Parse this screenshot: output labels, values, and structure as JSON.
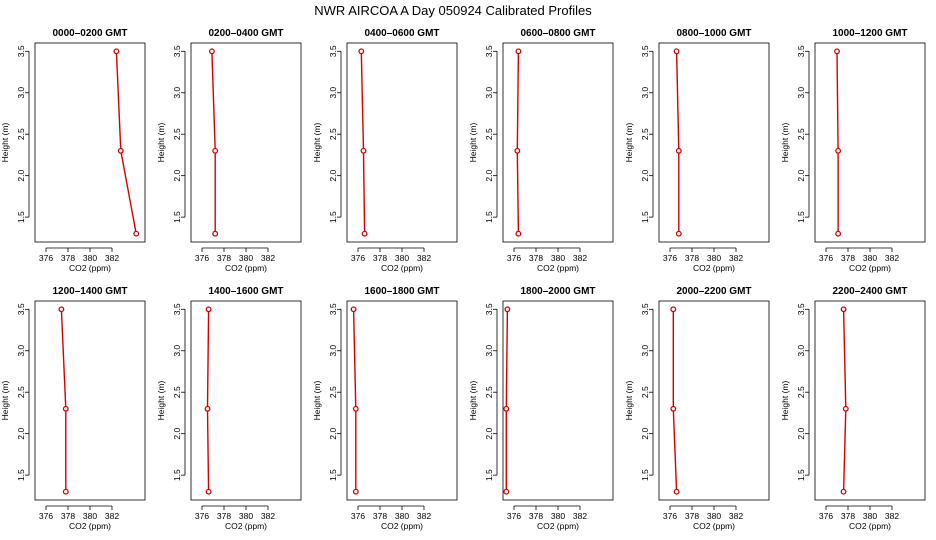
{
  "title": "NWR AIRCOA A  Day 050924  Calibrated Profiles",
  "chart_data": {
    "type": "line",
    "title": "NWR AIRCOA A  Day 050924  Calibrated Profiles",
    "xlabel": "CO2 (ppm)",
    "ylabel": "Height (m)",
    "xlim": [
      375,
      385
    ],
    "ylim": [
      1.2,
      3.6
    ],
    "x_ticks": [
      "376",
      "378",
      "380",
      "382"
    ],
    "y_ticks": [
      "1.5",
      "2.0",
      "2.5",
      "3.0",
      "3.5"
    ],
    "series_color": "#d40000",
    "grid": false,
    "panels": [
      {
        "title": "0000–0200 GMT",
        "points": [
          {
            "co2": 382.4,
            "height": 3.5
          },
          {
            "co2": 382.8,
            "height": 2.3
          },
          {
            "co2": 384.2,
            "height": 1.3
          }
        ]
      },
      {
        "title": "0200–0400 GMT",
        "points": [
          {
            "co2": 376.9,
            "height": 3.5
          },
          {
            "co2": 377.2,
            "height": 2.3
          },
          {
            "co2": 377.2,
            "height": 1.3
          }
        ]
      },
      {
        "title": "0400–0600 GMT",
        "points": [
          {
            "co2": 376.3,
            "height": 3.5
          },
          {
            "co2": 376.5,
            "height": 2.3
          },
          {
            "co2": 376.6,
            "height": 1.3
          }
        ]
      },
      {
        "title": "0600–0800 GMT",
        "points": [
          {
            "co2": 376.4,
            "height": 3.5
          },
          {
            "co2": 376.3,
            "height": 2.3
          },
          {
            "co2": 376.4,
            "height": 1.3
          }
        ]
      },
      {
        "title": "0800–1000 GMT",
        "points": [
          {
            "co2": 376.6,
            "height": 3.5
          },
          {
            "co2": 376.8,
            "height": 2.3
          },
          {
            "co2": 376.8,
            "height": 1.3
          }
        ]
      },
      {
        "title": "1000–1200 GMT",
        "points": [
          {
            "co2": 377.0,
            "height": 3.5
          },
          {
            "co2": 377.1,
            "height": 2.3
          },
          {
            "co2": 377.1,
            "height": 1.3
          }
        ]
      },
      {
        "title": "1200–1400 GMT",
        "points": [
          {
            "co2": 377.4,
            "height": 3.5
          },
          {
            "co2": 377.8,
            "height": 2.3
          },
          {
            "co2": 377.8,
            "height": 1.3
          }
        ]
      },
      {
        "title": "1400–1600 GMT",
        "points": [
          {
            "co2": 376.6,
            "height": 3.5
          },
          {
            "co2": 376.5,
            "height": 2.3
          },
          {
            "co2": 376.6,
            "height": 1.3
          }
        ]
      },
      {
        "title": "1600–1800 GMT",
        "points": [
          {
            "co2": 375.6,
            "height": 3.5
          },
          {
            "co2": 375.8,
            "height": 2.3
          },
          {
            "co2": 375.8,
            "height": 1.3
          }
        ]
      },
      {
        "title": "1800–2000 GMT",
        "points": [
          {
            "co2": 375.4,
            "height": 3.5
          },
          {
            "co2": 375.3,
            "height": 2.3
          },
          {
            "co2": 375.3,
            "height": 1.3
          }
        ]
      },
      {
        "title": "2000–2200 GMT",
        "points": [
          {
            "co2": 376.3,
            "height": 3.5
          },
          {
            "co2": 376.3,
            "height": 2.3
          },
          {
            "co2": 376.6,
            "height": 1.3
          }
        ]
      },
      {
        "title": "2200–2400 GMT",
        "points": [
          {
            "co2": 377.6,
            "height": 3.5
          },
          {
            "co2": 377.8,
            "height": 2.3
          },
          {
            "co2": 377.6,
            "height": 1.3
          }
        ]
      }
    ]
  }
}
